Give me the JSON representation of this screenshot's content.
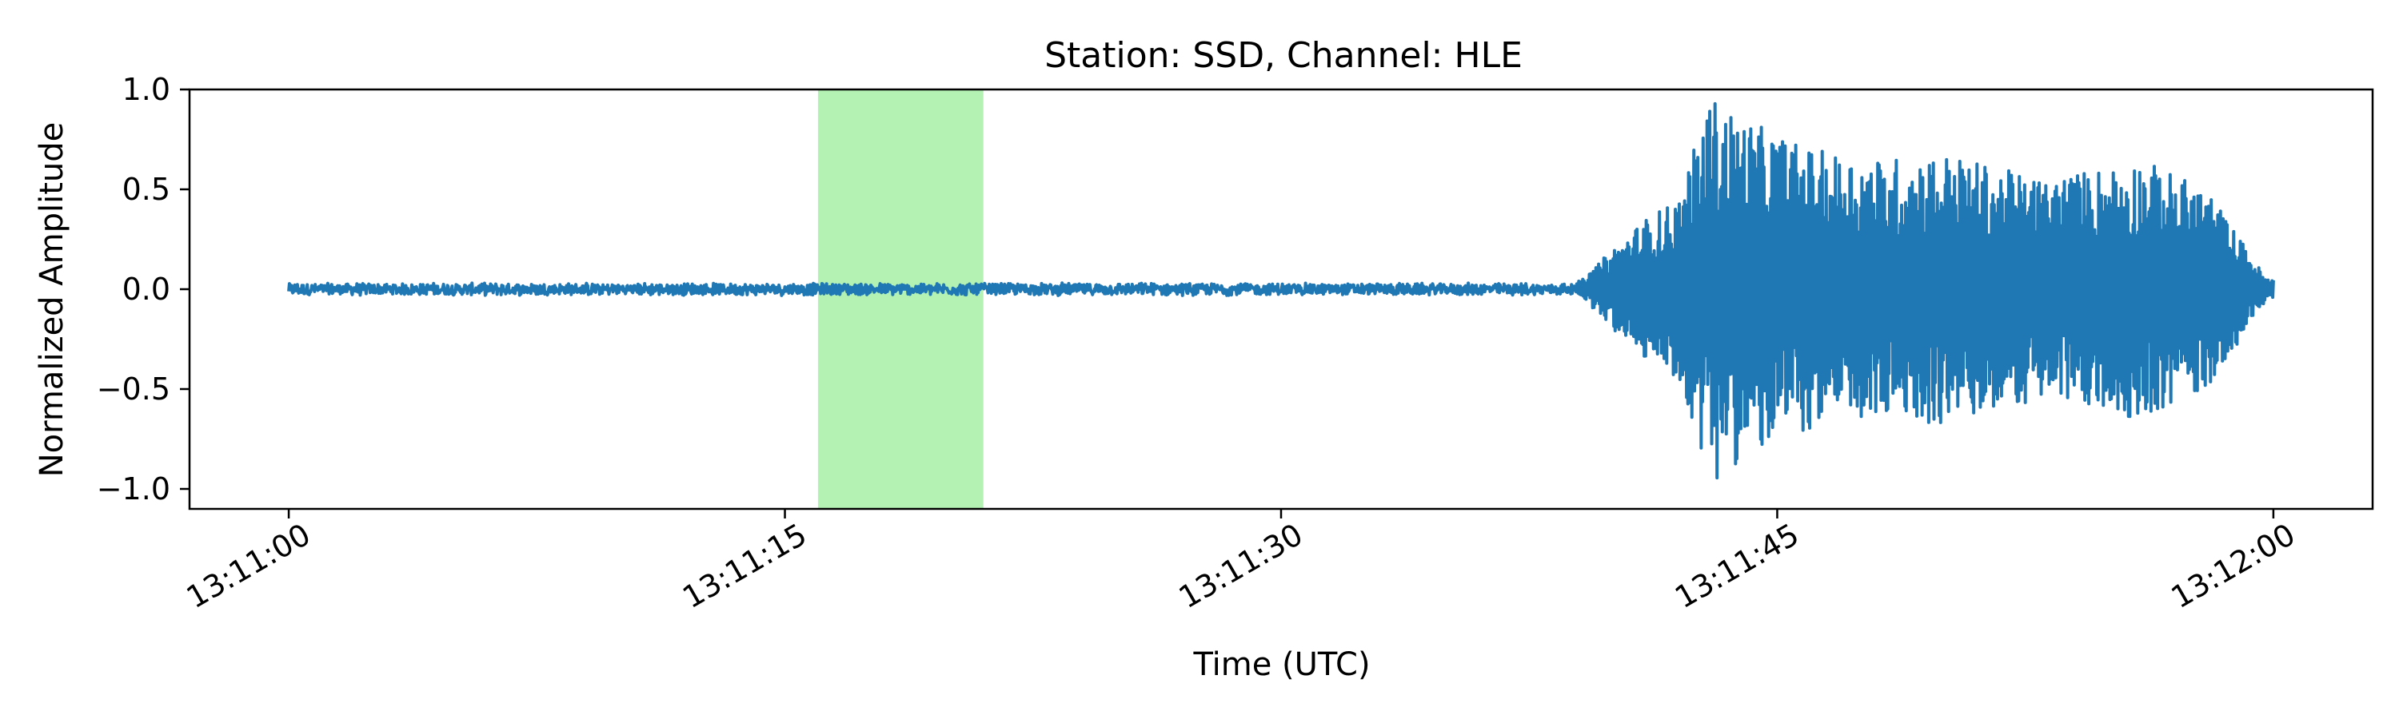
{
  "chart_data": {
    "type": "line",
    "title": "Station: SSD, Channel: HLE",
    "xlabel": "Time (UTC)",
    "ylabel": "Normalized Amplitude",
    "x_range": [
      "13:11:00",
      "13:12:00"
    ],
    "xlim": [
      "13:10:57",
      "13:12:03"
    ],
    "ylim": [
      -1.1,
      1.0
    ],
    "x_ticks": [
      "13:11:00",
      "13:11:15",
      "13:11:30",
      "13:11:45",
      "13:12:00"
    ],
    "y_ticks": [
      1.0,
      0.5,
      0.0,
      -0.5,
      -1.0
    ],
    "y_tick_labels": [
      "1.0",
      "0.5",
      "0.0",
      "−0.5",
      "−1.0"
    ],
    "highlight_window": {
      "start": "13:11:16",
      "end": "13:11:21",
      "color": "#b3f2b3"
    },
    "series": [
      {
        "color": "#1f77b4",
        "values": [
          [
            "13:11:00",
            0.0
          ],
          [
            "13:11:05",
            0.02
          ],
          [
            "13:11:10",
            -0.01
          ],
          [
            "13:11:15",
            0.01
          ],
          [
            "13:11:20",
            0.03
          ],
          [
            "13:11:25",
            -0.02
          ],
          [
            "13:11:30",
            0.01
          ],
          [
            "13:11:35",
            0.0
          ],
          [
            "13:11:39",
            0.02
          ],
          [
            "13:11:40",
            -0.2
          ],
          [
            "13:11:41",
            0.35
          ],
          [
            "13:11:42",
            -0.45
          ],
          [
            "13:11:43",
            -0.97
          ],
          [
            "13:11:43.5",
            0.9
          ],
          [
            "13:11:44",
            -0.85
          ],
          [
            "13:11:46",
            0.7
          ],
          [
            "13:11:48",
            -0.65
          ],
          [
            "13:11:50",
            0.68
          ],
          [
            "13:11:53",
            -0.55
          ],
          [
            "13:11:56",
            0.65
          ],
          [
            "13:11:58",
            -0.5
          ],
          [
            "13:12:00",
            0.0
          ]
        ]
      }
    ]
  }
}
